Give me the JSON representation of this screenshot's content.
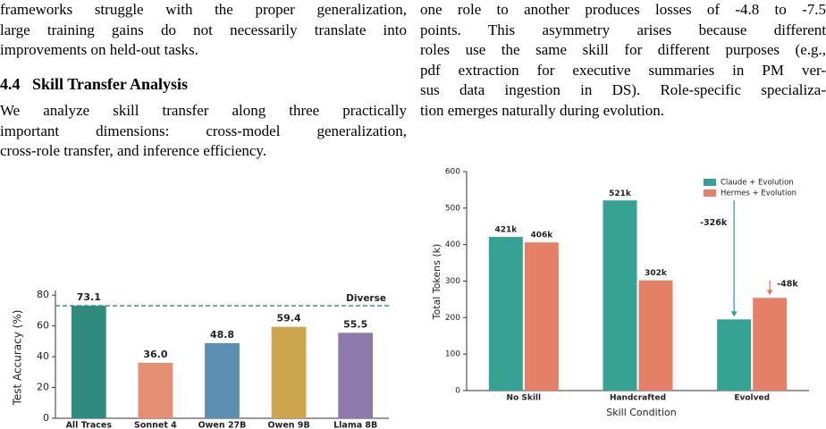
{
  "text": {
    "paragraph_1": [
      "frameworks struggle with the proper generalization,",
      "large training gains do not necessarily translate into",
      "improvements on held-out tasks."
    ],
    "section_number": "4.4",
    "section_title": "Skill Transfer Analysis",
    "paragraph_2": [
      "We analyze skill transfer along three practically",
      "important dimensions: cross-model generalization,",
      "cross-role transfer, and inference efficiency."
    ],
    "paragraph_3": [
      "one role to another produces losses of -4.8 to -7.5",
      "points.  This asymmetry arises because different",
      "roles use the same skill for different purposes (e.g.,",
      "pdf extraction for executive summaries in PM ver-",
      "sus data ingestion in DS). Role-specific specializa-",
      "tion emerges naturally during evolution."
    ]
  },
  "chart_data": [
    {
      "type": "bar",
      "ylabel": "Test Accuracy (%)",
      "categories": [
        "All Traces",
        "Sonnet 4",
        "Owen 27B",
        "Owen 9B",
        "Llama 8B"
      ],
      "values": [
        73.1,
        36.0,
        48.8,
        59.4,
        55.5
      ],
      "value_labels": [
        "73.1",
        "36.0",
        "48.8",
        "59.4",
        "55.5"
      ],
      "colors": [
        "#2e8b7e",
        "#e48e74",
        "#5a8fb1",
        "#cda54c",
        "#8e7aaa"
      ],
      "ylim": [
        0,
        83
      ],
      "yticks": [
        0,
        20,
        40,
        60,
        80
      ],
      "reference_line": {
        "value": 73.1,
        "label": "Diverse",
        "color": "#2e8b7e"
      }
    },
    {
      "type": "grouped_bar",
      "xlabel": "Skill Condition",
      "ylabel": "Total Tokens (k)",
      "categories": [
        "No Skill",
        "Handcrafted",
        "Evolved"
      ],
      "series": [
        {
          "name": "Claude + Evolution",
          "color": "#35a293",
          "values": [
            421,
            521,
            195
          ],
          "value_labels": [
            "421k",
            "521k",
            null
          ],
          "changes": [
            null,
            null,
            -326
          ],
          "change_labels": [
            null,
            null,
            "-326k"
          ]
        },
        {
          "name": "Hermes + Evolution",
          "color": "#e57f66",
          "values": [
            406,
            302,
            254
          ],
          "value_labels": [
            "406k",
            "302k",
            null
          ],
          "changes": [
            null,
            null,
            -48
          ],
          "change_labels": [
            null,
            null,
            "-48k"
          ]
        }
      ],
      "ylim": [
        0,
        600
      ],
      "yticks": [
        0,
        100,
        200,
        300,
        400,
        500,
        600
      ],
      "legend": "upper right"
    }
  ]
}
